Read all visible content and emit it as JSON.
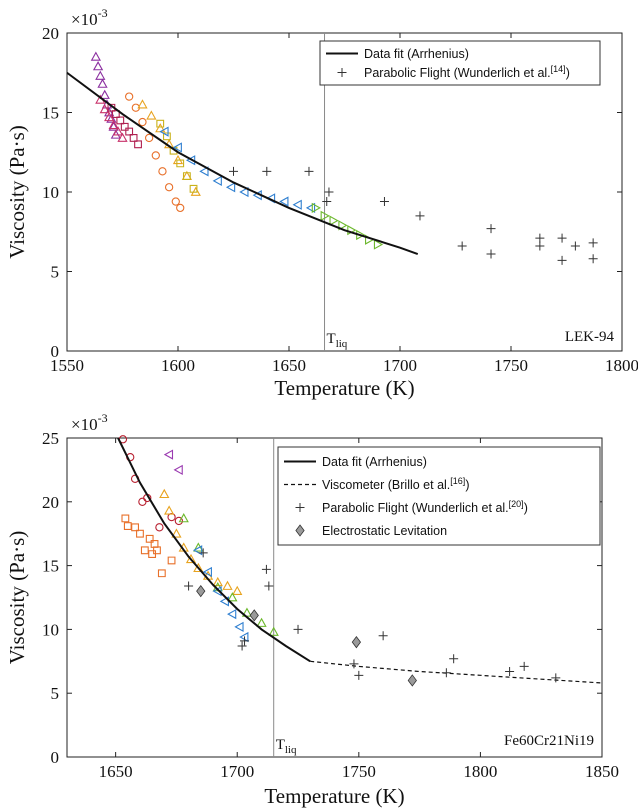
{
  "chart_data": [
    {
      "type": "scatter",
      "title": "",
      "xlabel": "Temperature (K)",
      "ylabel": "Viscosity (Pa·s)",
      "xlim": [
        1550,
        1800
      ],
      "ylim": [
        0,
        20
      ],
      "xticks": [
        1550,
        1600,
        1650,
        1700,
        1750,
        1800
      ],
      "yticks": [
        0,
        5,
        10,
        15,
        20
      ],
      "yexponent": "×10",
      "yexponent_power": "-3",
      "vline": {
        "x": 1666,
        "label": "T",
        "label_sub": "liq"
      },
      "annotation": "LEK-94",
      "legend_position": "top-right",
      "legend": [
        {
          "label": "Data fit (Arrhenius)",
          "marker": "line",
          "sup": ""
        },
        {
          "label": "Parabolic Flight (Wunderlich et al.",
          "sup": "[14]",
          "suffix": ")",
          "marker": "plus"
        }
      ],
      "fit": {
        "name": "Data fit (Arrhenius)",
        "x": [
          1550,
          1575,
          1600,
          1625,
          1650,
          1675,
          1700,
          1708
        ],
        "y": [
          17.5,
          14.9,
          12.5,
          10.6,
          9.0,
          7.6,
          6.5,
          6.1
        ]
      },
      "parabolic_flight": {
        "x": [
          1625,
          1640,
          1659,
          1667,
          1668,
          1693,
          1709,
          1728,
          1741,
          1741,
          1763,
          1763,
          1773,
          1773,
          1779,
          1787,
          1787
        ],
        "y": [
          11.3,
          11.3,
          11.3,
          9.4,
          10.0,
          9.4,
          8.5,
          6.6,
          7.7,
          6.1,
          7.1,
          6.6,
          7.1,
          5.7,
          6.6,
          6.8,
          5.8
        ]
      },
      "experimental": [
        {
          "marker": "triangle-up",
          "color": "#8b2fa0",
          "x": [
            1563,
            1564,
            1565,
            1566,
            1567,
            1568,
            1569,
            1570,
            1571,
            1572
          ],
          "y": [
            18.5,
            17.9,
            17.3,
            16.8,
            16.1,
            15.5,
            15.0,
            14.6,
            14.1,
            13.6
          ]
        },
        {
          "marker": "triangle-up",
          "color": "#c8326a",
          "x": [
            1565,
            1567,
            1569,
            1571,
            1573,
            1575
          ],
          "y": [
            15.8,
            15.2,
            14.7,
            14.2,
            13.8,
            13.4
          ]
        },
        {
          "marker": "square",
          "color": "#b02050",
          "x": [
            1570,
            1572,
            1574,
            1576,
            1578,
            1580,
            1582
          ],
          "y": [
            15.3,
            14.9,
            14.5,
            14.1,
            13.8,
            13.4,
            13.0
          ]
        },
        {
          "marker": "circle",
          "color": "#e8702a",
          "x": [
            1578,
            1581,
            1584,
            1587,
            1590,
            1593,
            1596,
            1599,
            1601
          ],
          "y": [
            16.0,
            15.3,
            14.4,
            13.4,
            12.3,
            11.3,
            10.3,
            9.4,
            9.0
          ]
        },
        {
          "marker": "triangle-up",
          "color": "#e8a31f",
          "x": [
            1584,
            1588,
            1592,
            1596,
            1600,
            1604,
            1608
          ],
          "y": [
            15.5,
            14.8,
            14.0,
            13.0,
            12.0,
            11.0,
            10.0
          ]
        },
        {
          "marker": "square",
          "color": "#c9b21a",
          "x": [
            1592,
            1595,
            1598,
            1601,
            1604,
            1607
          ],
          "y": [
            14.3,
            13.5,
            12.6,
            11.8,
            11.0,
            10.2
          ]
        },
        {
          "marker": "triangle-left",
          "color": "#2f7fd0",
          "x": [
            1594,
            1600,
            1606,
            1612,
            1618,
            1624,
            1630,
            1636,
            1642,
            1648,
            1654,
            1660
          ],
          "y": [
            13.8,
            12.8,
            12.0,
            11.3,
            10.7,
            10.3,
            10.0,
            9.8,
            9.6,
            9.4,
            9.2,
            9.0
          ]
        },
        {
          "marker": "triangle-right",
          "color": "#6cb82c",
          "x": [
            1662,
            1666,
            1670,
            1674,
            1678,
            1682,
            1686,
            1690
          ],
          "y": [
            9.0,
            8.5,
            8.2,
            7.9,
            7.6,
            7.3,
            7.0,
            6.7
          ]
        }
      ]
    },
    {
      "type": "scatter",
      "title": "",
      "xlabel": "Temperature (K)",
      "ylabel": "Viscosity (Pa·s)",
      "xlim": [
        1630,
        1850
      ],
      "ylim": [
        0,
        25
      ],
      "xticks": [
        1650,
        1700,
        1750,
        1800,
        1850
      ],
      "yticks": [
        0,
        5,
        10,
        15,
        20,
        25
      ],
      "yexponent": "×10",
      "yexponent_power": "-3",
      "vline": {
        "x": 1715,
        "label": "T",
        "label_sub": "liq"
      },
      "annotation": "Fe60Cr21Ni19",
      "legend_position": "top-right",
      "legend": [
        {
          "label": "Data fit (Arrhenius)",
          "marker": "line",
          "sup": ""
        },
        {
          "label": "Viscometer (Brillo et al.",
          "sup": "[16]",
          "suffix": ")",
          "marker": "dashed"
        },
        {
          "label": "Parabolic Flight (Wunderlich et al.",
          "sup": "[20]",
          "suffix": ")",
          "marker": "plus"
        },
        {
          "label": "Electrostatic Levitation",
          "marker": "diamond",
          "sup": ""
        }
      ],
      "fit": {
        "name": "Data fit (Arrhenius)",
        "x": [
          1651,
          1660,
          1670,
          1680,
          1690,
          1700,
          1710,
          1720,
          1730
        ],
        "y": [
          25.0,
          21.5,
          18.3,
          15.7,
          13.5,
          11.6,
          10.0,
          8.7,
          7.5
        ]
      },
      "viscometer": {
        "name": "Viscometer (Brillo et al.)",
        "x": [
          1730,
          1750,
          1775,
          1800,
          1825,
          1850
        ],
        "y": [
          7.5,
          7.1,
          6.7,
          6.4,
          6.1,
          5.8
        ]
      },
      "parabolic_flight": {
        "x": [
          1680,
          1686,
          1702,
          1703,
          1712,
          1713,
          1725,
          1748,
          1750,
          1760,
          1786,
          1789,
          1812,
          1818,
          1831
        ],
        "y": [
          13.4,
          16.0,
          8.7,
          9.1,
          14.7,
          13.4,
          10.0,
          7.3,
          6.4,
          9.5,
          6.6,
          7.7,
          6.7,
          7.1,
          6.2
        ]
      },
      "electrostatic_levitation": {
        "x": [
          1685,
          1707,
          1749,
          1772
        ],
        "y": [
          13.0,
          11.1,
          9.0,
          6.0
        ]
      },
      "experimental": [
        {
          "marker": "circle",
          "color": "#b82030",
          "x": [
            1653,
            1656,
            1658,
            1661,
            1663,
            1668,
            1673,
            1676
          ],
          "y": [
            24.9,
            23.5,
            21.8,
            20.0,
            20.3,
            18.0,
            18.8,
            18.5
          ]
        },
        {
          "marker": "square",
          "color": "#e8702a",
          "x": [
            1654,
            1655,
            1658,
            1660,
            1662,
            1664,
            1665,
            1666,
            1667,
            1669,
            1673
          ],
          "y": [
            18.7,
            18.1,
            18.0,
            17.5,
            16.2,
            17.1,
            15.9,
            16.7,
            16.2,
            14.4,
            15.4
          ]
        },
        {
          "marker": "triangle-left",
          "color": "#9a3ab0",
          "x": [
            1672,
            1676
          ],
          "y": [
            23.7,
            22.5
          ]
        },
        {
          "marker": "triangle-up",
          "color": "#e8a31f",
          "x": [
            1670,
            1672,
            1675,
            1678,
            1681,
            1684,
            1688,
            1692,
            1696,
            1700
          ],
          "y": [
            20.6,
            19.3,
            17.5,
            16.4,
            15.5,
            14.8,
            14.2,
            13.7,
            13.4,
            13.0
          ]
        },
        {
          "marker": "triangle-up",
          "color": "#6cb82c",
          "x": [
            1678,
            1684,
            1692,
            1698,
            1704,
            1710,
            1715
          ],
          "y": [
            18.7,
            16.4,
            13.3,
            12.5,
            11.3,
            10.5,
            9.8
          ]
        },
        {
          "marker": "triangle-left",
          "color": "#2f7fd0",
          "x": [
            1684,
            1688,
            1692,
            1695,
            1698,
            1701,
            1703
          ],
          "y": [
            16.2,
            14.5,
            13.0,
            12.2,
            11.2,
            10.2,
            9.4
          ]
        }
      ]
    }
  ]
}
